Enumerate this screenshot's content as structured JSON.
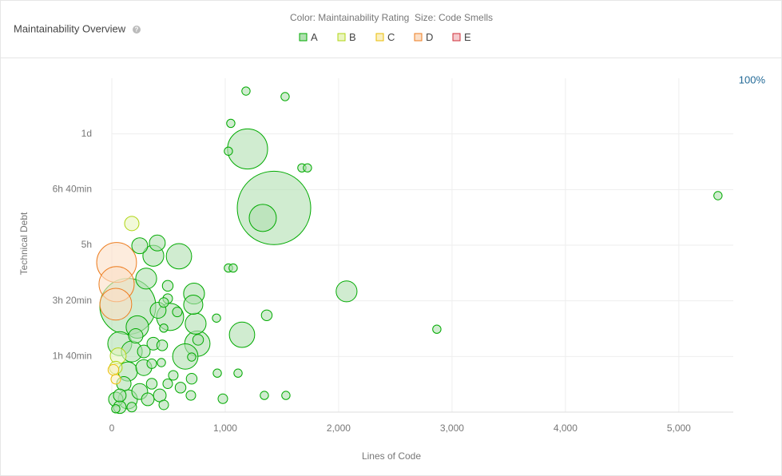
{
  "chart_data": {
    "type": "scatter",
    "title": "Maintainability Overview",
    "subtitle": "Color: Maintainability Rating  Size: Code Smells",
    "zoom": "100%",
    "xlabel": "Lines of Code",
    "ylabel": "Technical Debt",
    "xlim": [
      0,
      5480
    ],
    "xticks": [
      0,
      {
        "value": 1000,
        "label": "1,000"
      },
      {
        "value": 2000,
        "label": "2,000"
      },
      {
        "value": 3000,
        "label": "3,000"
      },
      {
        "value": 4000,
        "label": "4,000"
      },
      {
        "value": 5000,
        "label": "5,000"
      }
    ],
    "ylim": [
      0,
      600
    ],
    "yticks": [
      {
        "value": 100,
        "label": "1h 40min"
      },
      {
        "value": 200,
        "label": "3h 20min"
      },
      {
        "value": 300,
        "label": "5h"
      },
      {
        "value": 400,
        "label": "6h 40min"
      },
      {
        "value": 500,
        "label": "1d"
      }
    ],
    "grid": true,
    "series": [
      {
        "name": "A",
        "color": "#00aa00",
        "fill": "#b0e0b0",
        "x": [
          1183,
          1528,
          1049,
          1197,
          1028,
          1676,
          1725,
          1430,
          1331,
          5345,
          246,
          401,
          366,
          592,
          1028,
          1070,
          303,
          2070,
          725,
          718,
          493,
          514,
          408,
          1366,
          923,
          2866,
          739,
          1148,
          141,
          225,
          70,
          754,
          366,
          458,
          648,
          444,
          704,
          176,
          282,
          141,
          930,
          1113,
          704,
          542,
          606,
          697,
          979,
          1345,
          1535,
          458,
          70,
          35,
          141,
          246,
          106,
          352,
          423,
          176,
          317,
          493,
          282,
          577,
          493,
          458,
          761,
          211,
          35,
          70,
          352,
          437
        ],
        "values": [
          577,
          567,
          519,
          473,
          469,
          439,
          439,
          367,
          349,
          389,
          299,
          304,
          281,
          280,
          259,
          259,
          240,
          217,
          213,
          193,
          227,
          171,
          183,
          174,
          169,
          149,
          159,
          139,
          190,
          153,
          123,
          123,
          123,
          151,
          100,
          120,
          99,
          109,
          80,
          73,
          70,
          70,
          60,
          66,
          44,
          30,
          24,
          30,
          30,
          13,
          9,
          6,
          23,
          37,
          51,
          51,
          30,
          9,
          23,
          51,
          109,
          180,
          204,
          197,
          130,
          137,
          23,
          30,
          87,
          89
        ],
        "sizes": [
          3,
          3,
          3,
          70,
          3,
          3,
          3,
          235,
          32,
          3,
          11,
          11,
          19,
          28,
          3,
          3,
          19,
          19,
          19,
          16,
          5,
          32,
          11,
          5,
          3,
          3,
          19,
          28,
          136,
          22,
          25,
          28,
          7,
          3,
          28,
          5,
          3,
          19,
          11,
          16,
          3,
          3,
          5,
          4,
          5,
          4,
          4,
          3,
          3,
          4,
          7,
          3,
          16,
          11,
          9,
          5,
          7,
          4,
          7,
          4,
          7,
          4,
          4,
          4,
          5,
          9,
          9,
          7,
          4,
          3
        ]
      },
      {
        "name": "B",
        "color": "#b0d513",
        "fill": "#eaf5c0",
        "x": [
          176,
          56,
          35
        ],
        "values": [
          339,
          101,
          80
        ],
        "sizes": [
          9,
          11,
          7
        ]
      },
      {
        "name": "C",
        "color": "#eabe06",
        "fill": "#faefc0",
        "x": [
          14,
          35
        ],
        "values": [
          76,
          59
        ],
        "sizes": [
          5,
          4
        ]
      },
      {
        "name": "D",
        "color": "#ed7d20",
        "fill": "#fbdfc7",
        "x": [
          42,
          42,
          35
        ],
        "values": [
          269,
          230,
          194
        ],
        "sizes": [
          69,
          54,
          44
        ]
      },
      {
        "name": "E",
        "color": "#d02f3a",
        "fill": "#f4c9cc",
        "x": [],
        "values": [],
        "sizes": []
      }
    ]
  }
}
